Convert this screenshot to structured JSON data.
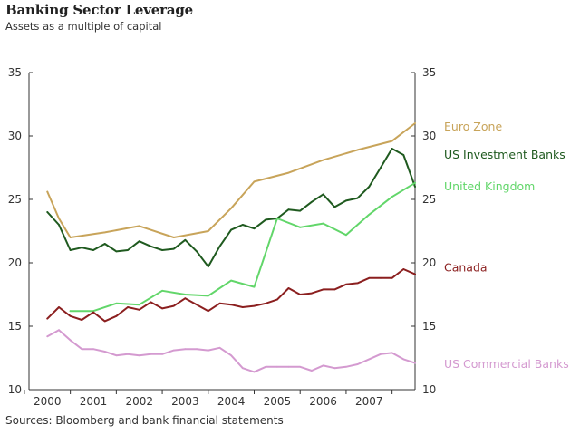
{
  "title": "Banking Sector Leverage",
  "subtitle": "Assets as a multiple of capital",
  "source": "Sources: Bloomberg and bank financial statements",
  "chart_data": {
    "type": "line",
    "title": "Banking Sector Leverage",
    "subtitle": "Assets as a multiple of capital",
    "xlabel": "",
    "ylabel": "",
    "xlim": [
      1999.6,
      2008.0
    ],
    "ylim": [
      10,
      35
    ],
    "yticks": [
      10,
      15,
      20,
      25,
      30,
      35
    ],
    "xticks": [
      "2000",
      "2001",
      "2002",
      "2003",
      "2004",
      "2005",
      "2006",
      "2007"
    ],
    "xtick_positions": [
      2000.0,
      2001.0,
      2002.0,
      2003.0,
      2004.0,
      2005.0,
      2006.0,
      2007.0
    ],
    "grid": false,
    "legend_position": "right",
    "series": [
      {
        "name": "Euro Zone",
        "color": "#c8a45a",
        "x": [
          2000.0,
          2000.25,
          2000.5,
          2001.25,
          2002.0,
          2002.75,
          2003.5,
          2004.0,
          2004.5,
          2005.25,
          2006.0,
          2006.75,
          2007.5,
          2008.0
        ],
        "y": [
          25.6,
          23.5,
          22.0,
          22.4,
          22.9,
          22.0,
          22.5,
          24.3,
          26.4,
          27.1,
          28.1,
          28.9,
          29.6,
          31.0
        ]
      },
      {
        "name": "US Investment Banks",
        "color": "#1f5a1f",
        "x": [
          2000.0,
          2000.25,
          2000.5,
          2000.75,
          2001.0,
          2001.25,
          2001.5,
          2001.75,
          2002.0,
          2002.25,
          2002.5,
          2002.75,
          2003.0,
          2003.25,
          2003.5,
          2003.75,
          2004.0,
          2004.25,
          2004.5,
          2004.75,
          2005.0,
          2005.25,
          2005.5,
          2005.75,
          2006.0,
          2006.25,
          2006.5,
          2006.75,
          2007.0,
          2007.25,
          2007.5,
          2007.75,
          2008.0
        ],
        "y": [
          24.0,
          23.0,
          21.0,
          21.2,
          21.0,
          21.5,
          20.9,
          21.0,
          21.7,
          21.3,
          21.0,
          21.1,
          21.8,
          20.9,
          19.7,
          21.3,
          22.6,
          23.0,
          22.7,
          23.4,
          23.5,
          24.2,
          24.1,
          24.8,
          25.4,
          24.4,
          24.9,
          25.1,
          26.0,
          27.5,
          29.0,
          28.5,
          26.0
        ]
      },
      {
        "name": "United Kingdom",
        "color": "#62d66a",
        "x": [
          2000.5,
          2001.0,
          2001.5,
          2002.0,
          2002.5,
          2003.0,
          2003.5,
          2004.0,
          2004.5,
          2005.0,
          2005.5,
          2006.0,
          2006.5,
          2007.0,
          2007.5,
          2008.0
        ],
        "y": [
          16.2,
          16.2,
          16.8,
          16.7,
          17.8,
          17.5,
          17.4,
          18.6,
          18.1,
          23.5,
          22.8,
          23.1,
          22.2,
          23.8,
          25.2,
          26.3
        ]
      },
      {
        "name": "Canada",
        "color": "#8b1f1f",
        "x": [
          2000.0,
          2000.25,
          2000.5,
          2000.75,
          2001.0,
          2001.25,
          2001.5,
          2001.75,
          2002.0,
          2002.25,
          2002.5,
          2002.75,
          2003.0,
          2003.25,
          2003.5,
          2003.75,
          2004.0,
          2004.25,
          2004.5,
          2004.75,
          2005.0,
          2005.25,
          2005.5,
          2005.75,
          2006.0,
          2006.25,
          2006.5,
          2006.75,
          2007.0,
          2007.25,
          2007.5,
          2007.75,
          2008.0
        ],
        "y": [
          15.6,
          16.5,
          15.8,
          15.5,
          16.1,
          15.4,
          15.8,
          16.5,
          16.3,
          16.9,
          16.4,
          16.6,
          17.2,
          16.7,
          16.2,
          16.8,
          16.7,
          16.5,
          16.6,
          16.8,
          17.1,
          18.0,
          17.5,
          17.6,
          17.9,
          17.9,
          18.3,
          18.4,
          18.8,
          18.8,
          18.8,
          19.5,
          19.1
        ]
      },
      {
        "name": "US Commercial Banks",
        "color": "#d49ad0",
        "x": [
          2000.0,
          2000.25,
          2000.5,
          2000.75,
          2001.0,
          2001.25,
          2001.5,
          2001.75,
          2002.0,
          2002.25,
          2002.5,
          2002.75,
          2003.0,
          2003.25,
          2003.5,
          2003.75,
          2004.0,
          2004.25,
          2004.5,
          2004.75,
          2005.0,
          2005.25,
          2005.5,
          2005.75,
          2006.0,
          2006.25,
          2006.5,
          2006.75,
          2007.0,
          2007.25,
          2007.5,
          2007.75,
          2008.0
        ],
        "y": [
          14.2,
          14.7,
          13.9,
          13.2,
          13.2,
          13.0,
          12.7,
          12.8,
          12.7,
          12.8,
          12.8,
          13.1,
          13.2,
          13.2,
          13.1,
          13.3,
          12.7,
          11.7,
          11.4,
          11.8,
          11.8,
          11.8,
          11.8,
          11.5,
          11.9,
          11.7,
          11.8,
          12.0,
          12.4,
          12.8,
          12.9,
          12.4,
          12.1
        ]
      }
    ],
    "legend_labels_y": [
      30.7,
      28.5,
      26.0,
      19.6,
      12.0
    ]
  }
}
